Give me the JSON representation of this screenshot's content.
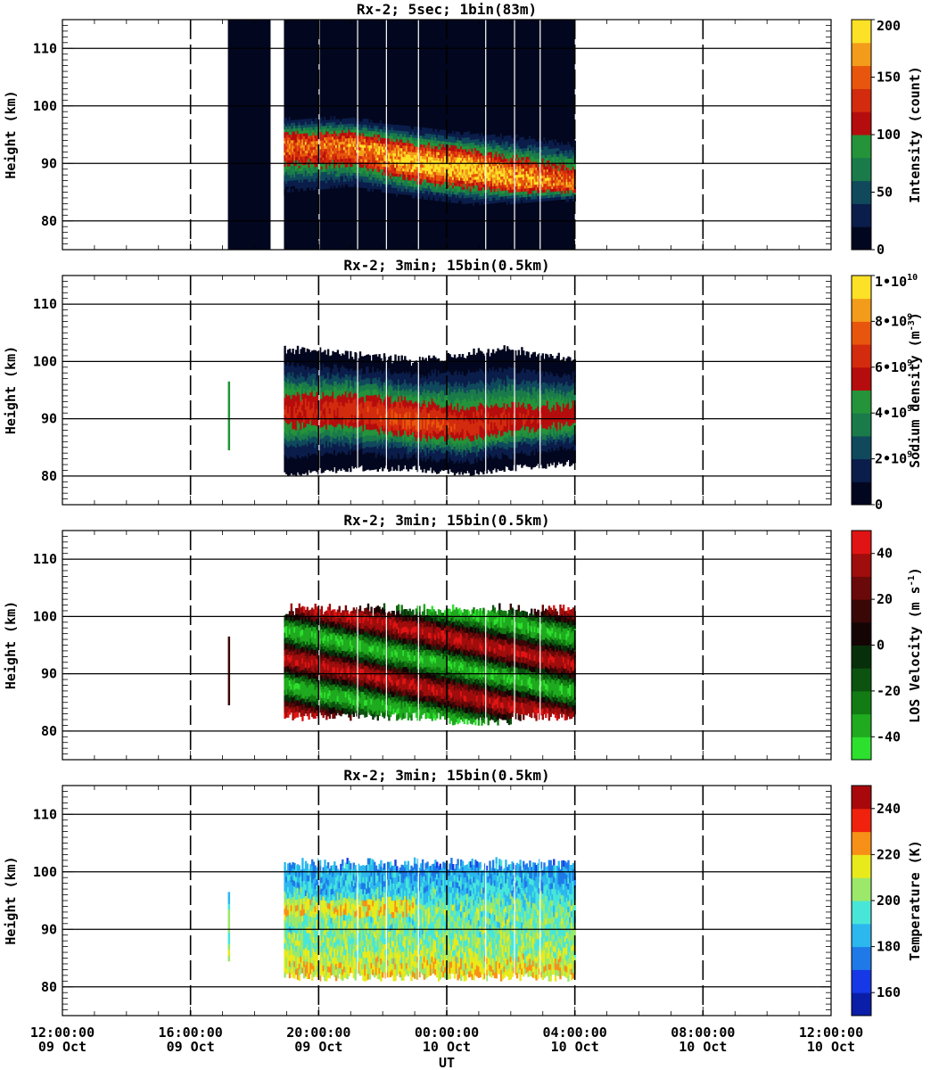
{
  "x_axis": {
    "label": "UT",
    "ticks": [
      {
        "time": "12:00:00",
        "date": "09 Oct"
      },
      {
        "time": "16:00:00",
        "date": "09 Oct"
      },
      {
        "time": "20:00:00",
        "date": "09 Oct"
      },
      {
        "time": "00:00:00",
        "date": "10 Oct"
      },
      {
        "time": "04:00:00",
        "date": "10 Oct"
      },
      {
        "time": "08:00:00",
        "date": "10 Oct"
      },
      {
        "time": "12:00:00",
        "date": "10 Oct"
      }
    ]
  },
  "chart_data": [
    {
      "type": "heatmap",
      "title": "Rx-2;  5sec; 1bin(83m)",
      "xlabel": "UT",
      "ylabel": "Height (km)",
      "xlim": [
        "2023-10-09 12:00",
        "2023-10-10 12:00"
      ],
      "ylim": [
        75,
        115
      ],
      "yticks": [
        "80",
        "90",
        "100",
        "110"
      ],
      "colorbar": {
        "label": "Intensity (count)",
        "range": [
          0,
          200
        ],
        "ticks": [
          "0",
          "50",
          "100",
          "150",
          "200"
        ]
      },
      "colors": [
        "#02071f",
        "#0b1d4a",
        "#10495c",
        "#1a7a4a",
        "#24933a",
        "#b50d0d",
        "#d22b0e",
        "#e7560c",
        "#f39b1a",
        "#fce126"
      ],
      "coverage": [
        {
          "start": "17:10",
          "end": "18:30"
        },
        {
          "start": "18:55",
          "end": "04:00"
        }
      ],
      "layer_profile": [
        {
          "time": "18:55",
          "bottom_km": 81,
          "peak_km": 93,
          "top_km": 100,
          "peak_count": 150
        },
        {
          "time": "21:00",
          "bottom_km": 82,
          "peak_km": 93,
          "top_km": 100,
          "peak_count": 160
        },
        {
          "time": "23:00",
          "bottom_km": 81,
          "peak_km": 90,
          "top_km": 99,
          "peak_count": 190
        },
        {
          "time": "00:30",
          "bottom_km": 80,
          "peak_km": 89,
          "top_km": 98,
          "peak_count": 200
        },
        {
          "time": "02:00",
          "bottom_km": 81,
          "peak_km": 87,
          "top_km": 98,
          "peak_count": 180
        },
        {
          "time": "04:00",
          "bottom_km": 82,
          "peak_km": 86,
          "top_km": 97,
          "peak_count": 150
        }
      ]
    },
    {
      "type": "heatmap",
      "title": "Rx-2; 3min; 15bin(0.5km)",
      "xlabel": "UT",
      "ylabel": "Height (km)",
      "xlim": [
        "2023-10-09 12:00",
        "2023-10-10 12:00"
      ],
      "ylim": [
        75,
        115
      ],
      "yticks": [
        "80",
        "90",
        "100",
        "110"
      ],
      "colorbar": {
        "label": "Sodium density (m",
        "label_sup": "-3",
        "label_end": ")",
        "range": [
          0,
          10000000000
        ],
        "ticks": [
          {
            "m": "0",
            "e": ""
          },
          {
            "m": "2•10",
            "e": "9"
          },
          {
            "m": "4•10",
            "e": "9"
          },
          {
            "m": "6•10",
            "e": "9"
          },
          {
            "m": "8•10",
            "e": "9"
          },
          {
            "m": "1•10",
            "e": "10"
          }
        ]
      },
      "colors": [
        "#02071f",
        "#0b1d4a",
        "#10495c",
        "#1a7a4a",
        "#24933a",
        "#b50d0d",
        "#d22b0e",
        "#e7560c",
        "#f39b1a",
        "#fce126"
      ],
      "coverage": [
        {
          "start": "17:10",
          "end": "17:20"
        },
        {
          "start": "18:55",
          "end": "04:00"
        }
      ],
      "layer_profile": [
        {
          "time": "18:55",
          "bottom_km": 81,
          "peak_km": 91,
          "top_km": 101,
          "peak_density": 6000000000
        },
        {
          "time": "21:00",
          "bottom_km": 82,
          "peak_km": 91,
          "top_km": 100,
          "peak_density": 6500000000
        },
        {
          "time": "23:00",
          "bottom_km": 82,
          "peak_km": 89,
          "top_km": 99,
          "peak_density": 7200000000
        },
        {
          "time": "00:30",
          "bottom_km": 81,
          "peak_km": 88,
          "top_km": 100,
          "peak_density": 6500000000
        },
        {
          "time": "02:00",
          "bottom_km": 82,
          "peak_km": 89,
          "top_km": 101,
          "peak_density": 6000000000
        },
        {
          "time": "04:00",
          "bottom_km": 83,
          "peak_km": 90,
          "top_km": 99,
          "peak_density": 5500000000
        }
      ]
    },
    {
      "type": "heatmap",
      "title": "Rx-2; 3min; 15bin(0.5km)",
      "xlabel": "UT",
      "ylabel": "Height (km)",
      "xlim": [
        "2023-10-09 12:00",
        "2023-10-10 12:00"
      ],
      "ylim": [
        75,
        115
      ],
      "yticks": [
        "80",
        "90",
        "100",
        "110"
      ],
      "colorbar": {
        "label": "LOS Velocity (m s",
        "label_sup": "-1",
        "label_end": ")",
        "range": [
          -50,
          50
        ],
        "ticks": [
          "-40",
          "-20",
          "0",
          "20",
          "40"
        ]
      },
      "colors": [
        "#2ee02e",
        "#1faa1f",
        "#137b13",
        "#0c5310",
        "#07300a",
        "#140504",
        "#3a0707",
        "#6a0909",
        "#a00d0d",
        "#e01414"
      ],
      "coverage": [
        {
          "start": "17:10",
          "end": "17:20"
        },
        {
          "start": "18:55",
          "end": "04:00"
        }
      ],
      "wave_pattern": {
        "phase_descent_km_per_hour": 1.2,
        "period_hours": 8,
        "amplitude_m_s": 40
      }
    },
    {
      "type": "heatmap",
      "title": "Rx-2; 3min; 15bin(0.5km)",
      "xlabel": "UT",
      "ylabel": "Height (km)",
      "xlim": [
        "2023-10-09 12:00",
        "2023-10-10 12:00"
      ],
      "ylim": [
        75,
        115
      ],
      "yticks": [
        "80",
        "90",
        "100",
        "110"
      ],
      "colorbar": {
        "label": "Temperature (K)",
        "range": [
          150,
          250
        ],
        "ticks": [
          "160",
          "180",
          "200",
          "220",
          "240"
        ]
      },
      "colors": [
        "#0b1ea8",
        "#1638e6",
        "#1f7ae8",
        "#2cb8ee",
        "#48e6d8",
        "#9be86b",
        "#e8ea1c",
        "#f79016",
        "#f0220d",
        "#a8080c"
      ],
      "coverage": [
        {
          "start": "17:10",
          "end": "17:20"
        },
        {
          "start": "18:55",
          "end": "04:00"
        }
      ],
      "profile": [
        {
          "height_km": 83,
          "temperature_K": 215
        },
        {
          "height_km": 86,
          "temperature_K": 205
        },
        {
          "height_km": 90,
          "temperature_K": 200
        },
        {
          "height_km": 93,
          "temperature_K": 200
        },
        {
          "height_km": 96,
          "temperature_K": 190
        },
        {
          "height_km": 100,
          "temperature_K": 180
        }
      ]
    }
  ]
}
